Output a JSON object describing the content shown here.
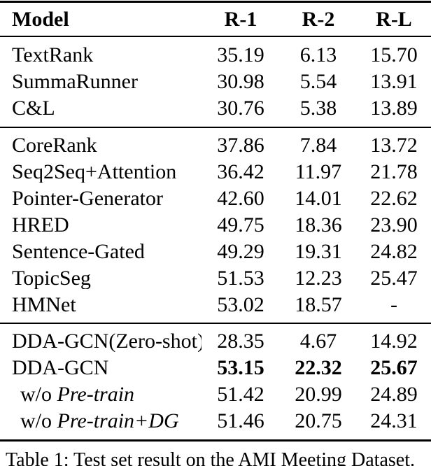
{
  "table": {
    "columns": [
      "Model",
      "R-1",
      "R-2",
      "R-L"
    ],
    "sections": [
      {
        "rows": [
          {
            "name": "TextRank",
            "values": [
              "35.19",
              "6.13",
              "15.70"
            ]
          },
          {
            "name": "SummaRunner",
            "values": [
              "30.98",
              "5.54",
              "13.91"
            ]
          },
          {
            "name": "C&L",
            "values": [
              "30.76",
              "5.38",
              "13.89"
            ]
          }
        ]
      },
      {
        "rows": [
          {
            "name": "CoreRank",
            "values": [
              "37.86",
              "7.84",
              "13.72"
            ]
          },
          {
            "name": "Seq2Seq+Attention",
            "values": [
              "36.42",
              "11.97",
              "21.78"
            ]
          },
          {
            "name": "Pointer-Generator",
            "values": [
              "42.60",
              "14.01",
              "22.62"
            ]
          },
          {
            "name": "HRED",
            "values": [
              "49.75",
              "18.36",
              "23.90"
            ]
          },
          {
            "name": "Sentence-Gated",
            "values": [
              "49.29",
              "19.31",
              "24.82"
            ]
          },
          {
            "name": "TopicSeg",
            "values": [
              "51.53",
              "12.23",
              "25.47"
            ]
          },
          {
            "name": "HMNet",
            "values": [
              "53.02",
              "18.57",
              "-"
            ]
          }
        ]
      },
      {
        "rows": [
          {
            "name": "DDA-GCN(Zero-shot)",
            "values": [
              "28.35",
              "4.67",
              "14.92"
            ]
          },
          {
            "name": "DDA-GCN",
            "values": [
              "53.15",
              "22.32",
              "25.67"
            ],
            "bold": true
          },
          {
            "name": "w/o ",
            "name_italic": "Pre-train",
            "indent": true,
            "values": [
              "51.42",
              "20.99",
              "24.89"
            ]
          },
          {
            "name": "w/o ",
            "name_italic": "Pre-train+DG",
            "indent": true,
            "values": [
              "51.46",
              "20.75",
              "24.31"
            ]
          }
        ]
      }
    ],
    "caption": "Table 1: Test set result on the AMI Meeting Dataset."
  }
}
